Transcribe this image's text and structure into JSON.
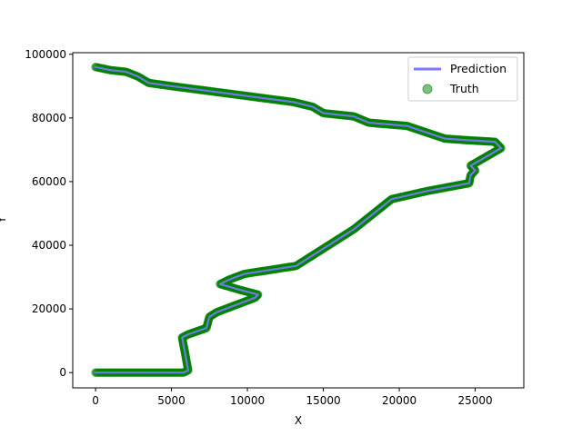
{
  "chart_data": {
    "type": "line",
    "title": "",
    "xlabel": "X",
    "ylabel": "Y",
    "xlim": [
      -1500,
      28200
    ],
    "ylim": [
      -4800,
      100500
    ],
    "xticks": [
      0,
      5000,
      10000,
      15000,
      20000,
      25000
    ],
    "xtick_labels": [
      "0",
      "5000",
      "10000",
      "15000",
      "20000",
      "25000"
    ],
    "yticks": [
      0,
      20000,
      40000,
      60000,
      80000,
      100000
    ],
    "ytick_labels": [
      "0",
      "20000",
      "40000",
      "60000",
      "80000",
      "100000"
    ],
    "legend_placement": "top-right",
    "grid": false,
    "series": [
      {
        "name": "Prediction",
        "kind": "line",
        "color": "#7b7bff",
        "points": [
          [
            0,
            0
          ],
          [
            5800,
            0
          ],
          [
            6100,
            700
          ],
          [
            6050,
            2000
          ],
          [
            5900,
            6000
          ],
          [
            5700,
            11000
          ],
          [
            6100,
            12000
          ],
          [
            7300,
            14000
          ],
          [
            7500,
            17500
          ],
          [
            8000,
            19000
          ],
          [
            10500,
            23500
          ],
          [
            10700,
            24500
          ],
          [
            9500,
            26000
          ],
          [
            8200,
            27800
          ],
          [
            8800,
            29200
          ],
          [
            9800,
            31000
          ],
          [
            13200,
            33500
          ],
          [
            17000,
            45000
          ],
          [
            19500,
            54500
          ],
          [
            21800,
            57000
          ],
          [
            24600,
            59500
          ],
          [
            24700,
            62000
          ],
          [
            25000,
            63500
          ],
          [
            24700,
            65000
          ],
          [
            26700,
            70500
          ],
          [
            26300,
            72500
          ],
          [
            24500,
            73000
          ],
          [
            23000,
            73500
          ],
          [
            20500,
            77500
          ],
          [
            18000,
            78500
          ],
          [
            17000,
            80500
          ],
          [
            15000,
            81500
          ],
          [
            14300,
            83500
          ],
          [
            13000,
            85000
          ],
          [
            5000,
            90000
          ],
          [
            3500,
            91000
          ],
          [
            2800,
            93000
          ],
          [
            2000,
            94500
          ],
          [
            1000,
            95000
          ],
          [
            0,
            96000
          ]
        ]
      },
      {
        "name": "Truth",
        "kind": "scatter",
        "color": "#008000"
      }
    ]
  }
}
